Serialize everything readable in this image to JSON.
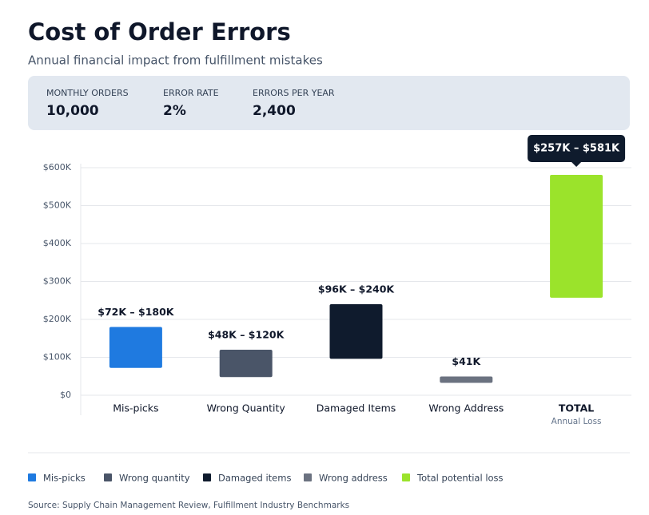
{
  "header": {
    "title": "Cost of Order Errors",
    "subtitle": "Annual financial impact from fulfillment mistakes"
  },
  "stats": [
    {
      "label": "MONTHLY ORDERS",
      "value": "10,000"
    },
    {
      "label": "ERROR RATE",
      "value": "2%"
    },
    {
      "label": "ERRORS PER YEAR",
      "value": "2,400"
    }
  ],
  "chart_data": {
    "type": "range-bar",
    "categories": [
      "Mis-picks",
      "Wrong Quantity",
      "Damaged Items",
      "Wrong Address",
      "TOTAL"
    ],
    "total_note": "Annual Loss",
    "low": [
      72000,
      48000,
      96000,
      41000,
      257000
    ],
    "high": [
      180000,
      120000,
      240000,
      41000,
      581000
    ],
    "value_labels": [
      "$72K – $180K",
      "$48K – $120K",
      "$96K – $240K",
      "$41K",
      "$257K – $581K"
    ],
    "colors": [
      "#1f7ae0",
      "#4a5568",
      "#0f1b2d",
      "#6b7280",
      "#9be32b"
    ],
    "ylim": [
      0,
      600000
    ],
    "yticks": [
      {
        "value": 0,
        "label": "$0"
      },
      {
        "value": 100000,
        "label": "$100K"
      },
      {
        "value": 200000,
        "label": "$200K"
      },
      {
        "value": 300000,
        "label": "$300K"
      },
      {
        "value": 400000,
        "label": "$400K"
      },
      {
        "value": 500000,
        "label": "$500K"
      },
      {
        "value": 600000,
        "label": "$600K"
      }
    ],
    "grid": true,
    "legend": [
      {
        "name": "Mis-picks",
        "color": "#1f7ae0"
      },
      {
        "name": "Wrong quantity",
        "color": "#4a5568"
      },
      {
        "name": "Damaged items",
        "color": "#0f1b2d"
      },
      {
        "name": "Wrong address",
        "color": "#6b7280"
      },
      {
        "name": "Total potential loss",
        "color": "#9be32b"
      }
    ]
  },
  "source": "Source: Supply Chain Management Review, Fulfillment Industry Benchmarks"
}
